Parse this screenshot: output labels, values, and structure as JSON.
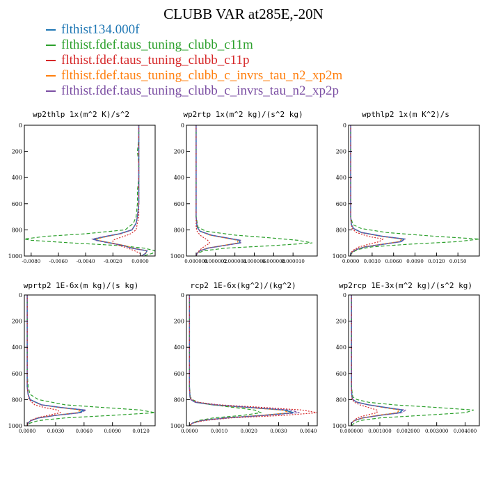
{
  "title": "CLUBB VAR at285E,-20N",
  "legend": [
    {
      "label": "flthist134.000f",
      "color": "#1f77b4",
      "dash": "solid"
    },
    {
      "label": "flthist.fdef.taus_tuning_clubb_c11m",
      "color": "#2ca02c",
      "dash": "dashed"
    },
    {
      "label": "flthist.fdef.taus_tuning_clubb_c11p",
      "color": "#d62728",
      "dash": "dashed"
    },
    {
      "label": "flthist.fdef.taus_tuning_clubb_c_invrs_tau_n2_xp2m",
      "color": "#ff7f0e",
      "dash": "dashed"
    },
    {
      "label": "flthist.fdef.taus_tuning_clubb_c_invrs_tau_n2_xp2p",
      "color": "#7b4ea3",
      "dash": "dashed"
    }
  ],
  "colors": {
    "series": [
      "#1f77b4",
      "#2ca02c",
      "#d62728",
      "#ff7f0e",
      "#7b4ea3"
    ]
  },
  "chart_data": [
    {
      "type": "line",
      "title": "wp2thlp  1x(m^2 K)/s^2",
      "xlim": [
        -0.0085,
        0.0011
      ],
      "ylim": [
        1000,
        0
      ],
      "xticks": [
        -0.008,
        -0.006,
        -0.004,
        -0.002,
        0.0
      ],
      "xtick_labels": [
        "-0.0080",
        "-0.0060",
        "-0.0040",
        "-0.0020",
        "0.0000"
      ],
      "yticks": [
        0,
        200,
        400,
        600,
        800,
        1000
      ],
      "ytick_labels": [
        "0",
        "200",
        "400",
        "600",
        "800",
        "1000"
      ],
      "y": [
        0,
        100,
        200,
        300,
        400,
        500,
        600,
        700,
        750,
        800,
        830,
        850,
        870,
        880,
        900,
        920,
        940,
        960,
        980,
        1000
      ],
      "series": [
        {
          "values": [
            -0.0001,
            -0.0001,
            -0.0001,
            -0.0001,
            -0.0001,
            -0.0001,
            -0.0001,
            -0.0002,
            -0.0003,
            -0.0006,
            -0.0015,
            -0.0025,
            -0.0034,
            -0.0032,
            -0.0022,
            -0.0012,
            -0.0006,
            0.0005,
            0.0004,
            0.0001
          ]
        },
        {
          "values": [
            -0.0001,
            -0.0001,
            -0.0002,
            -0.0001,
            -0.0001,
            -0.0002,
            -0.0002,
            -0.0003,
            -0.0005,
            -0.0011,
            -0.004,
            -0.007,
            -0.0085,
            -0.008,
            -0.005,
            -0.0015,
            0.0003,
            0.0011,
            0.0009,
            0.0002
          ]
        },
        {
          "values": [
            -0.0001,
            -0.0001,
            -0.0001,
            -0.0001,
            -0.0001,
            -0.0001,
            -0.0001,
            -0.0001,
            -0.0002,
            -0.0003,
            -0.0007,
            -0.0012,
            -0.0018,
            -0.002,
            -0.002,
            -0.0015,
            -0.0009,
            -0.0004,
            0.0,
            0.0
          ]
        },
        {
          "values": [
            -0.0001,
            -0.0001,
            -0.0001,
            -0.0001,
            -0.0001,
            -0.0001,
            -0.0001,
            -0.0002,
            -0.0003,
            -0.0006,
            -0.0014,
            -0.0024,
            -0.0032,
            -0.0031,
            -0.0021,
            -0.0011,
            -0.0005,
            0.0005,
            0.0004,
            0.0001
          ]
        },
        {
          "values": [
            -0.0001,
            -0.0001,
            -0.0001,
            -0.0001,
            -0.0001,
            -0.0001,
            -0.0001,
            -0.0002,
            -0.0003,
            -0.0006,
            -0.0015,
            -0.0026,
            -0.0035,
            -0.0033,
            -0.0023,
            -0.0012,
            -0.0006,
            0.0005,
            0.0004,
            0.0001
          ]
        }
      ]
    },
    {
      "type": "line",
      "title": "wp2rtp  1x(m^2 kg)/(s^2 kg)",
      "xlim": [
        -1e-06,
        1.25e-05
      ],
      "ylim": [
        1000,
        0
      ],
      "xticks": [
        0.0,
        2e-06,
        4e-06,
        6e-06,
        8e-06,
        1e-05
      ],
      "xtick_labels": [
        "0.000000",
        "0.000002",
        "0.000004",
        "0.000006",
        "0.000008",
        "0.000010"
      ],
      "yticks": [
        0,
        200,
        400,
        600,
        800,
        1000
      ],
      "ytick_labels": [
        "0",
        "200",
        "400",
        "600",
        "800",
        "1000"
      ],
      "y": [
        0,
        200,
        400,
        600,
        700,
        780,
        810,
        840,
        860,
        880,
        900,
        920,
        940,
        960,
        980,
        1000
      ],
      "series": [
        {
          "values": [
            0.0,
            0.0,
            0.0,
            0.0,
            0.0,
            1e-07,
            4e-07,
            1.5e-06,
            3e-06,
            4.5e-06,
            4.5e-06,
            2.8e-06,
            1.2e-06,
            4e-07,
            1e-07,
            0.0
          ]
        },
        {
          "values": [
            0.0,
            0.0,
            0.0,
            0.0,
            0.0,
            2e-07,
            1e-06,
            4e-06,
            7.5e-06,
            1.05e-05,
            1.2e-05,
            8e-06,
            3e-06,
            8e-07,
            1e-07,
            0.0
          ]
        },
        {
          "values": [
            0.0,
            0.0,
            0.0,
            0.0,
            0.0,
            0.0,
            1e-07,
            4e-07,
            8e-07,
            1.2e-06,
            1.4e-06,
            1e-06,
            6e-07,
            3e-07,
            1e-07,
            0.0
          ]
        },
        {
          "values": [
            0.0,
            0.0,
            0.0,
            0.0,
            0.0,
            1e-07,
            4e-07,
            1.4e-06,
            2.8e-06,
            4.3e-06,
            4.3e-06,
            2.7e-06,
            1.1e-06,
            4e-07,
            1e-07,
            0.0
          ]
        },
        {
          "values": [
            0.0,
            0.0,
            0.0,
            0.0,
            0.0,
            1e-07,
            4e-07,
            1.6e-06,
            3.1e-06,
            4.6e-06,
            4.6e-06,
            2.9e-06,
            1.2e-06,
            4e-07,
            1e-07,
            0.0
          ]
        }
      ]
    },
    {
      "type": "line",
      "title": "wpthlp2  1x(m K^2)/s",
      "xlim": [
        -0.0003,
        0.018
      ],
      "ylim": [
        1000,
        0
      ],
      "xticks": [
        0.0,
        0.003,
        0.006,
        0.009,
        0.012,
        0.015
      ],
      "xtick_labels": [
        "0.0000",
        "0.0030",
        "0.0060",
        "0.0090",
        "0.0120",
        "0.0150"
      ],
      "yticks": [
        0,
        200,
        400,
        600,
        800,
        1000
      ],
      "ytick_labels": [
        "0",
        "200",
        "400",
        "600",
        "800",
        "1000"
      ],
      "y": [
        0,
        200,
        400,
        600,
        700,
        760,
        790,
        820,
        850,
        870,
        890,
        910,
        930,
        950,
        970,
        990,
        1000
      ],
      "series": [
        {
          "values": [
            0.0,
            0.0,
            0.0,
            0.0,
            0.0,
            0.0001,
            0.0004,
            0.0015,
            0.0045,
            0.0075,
            0.007,
            0.0045,
            0.002,
            0.0008,
            0.0002,
            0.0,
            0.0
          ]
        },
        {
          "values": [
            0.0,
            0.0,
            0.0,
            0.0,
            0.0,
            0.0003,
            0.0015,
            0.005,
            0.012,
            0.018,
            0.015,
            0.008,
            0.003,
            0.001,
            0.0003,
            0.0,
            0.0
          ]
        },
        {
          "values": [
            0.0,
            0.0,
            0.0,
            0.0,
            0.0,
            0.0001,
            0.0002,
            0.0008,
            0.0025,
            0.0045,
            0.004,
            0.0025,
            0.0012,
            0.0005,
            0.0001,
            0.0,
            0.0
          ]
        },
        {
          "values": [
            0.0,
            0.0,
            0.0,
            0.0,
            0.0,
            0.0001,
            0.0004,
            0.0014,
            0.0043,
            0.0072,
            0.0067,
            0.0043,
            0.0019,
            0.0008,
            0.0002,
            0.0,
            0.0
          ]
        },
        {
          "values": [
            0.0,
            0.0,
            0.0,
            0.0,
            0.0,
            0.0001,
            0.0004,
            0.0015,
            0.0046,
            0.0076,
            0.0071,
            0.0046,
            0.002,
            0.0008,
            0.0002,
            0.0,
            0.0
          ]
        }
      ]
    },
    {
      "type": "line",
      "title": "wprtp2  1E-6x(m kg)/(s kg)",
      "xlim": [
        -0.0003,
        0.0135
      ],
      "ylim": [
        1000,
        0
      ],
      "xticks": [
        0.0,
        0.003,
        0.006,
        0.009,
        0.012
      ],
      "xtick_labels": [
        "0.0000",
        "0.0030",
        "0.0060",
        "0.0090",
        "0.0120"
      ],
      "yticks": [
        0,
        200,
        400,
        600,
        800,
        1000
      ],
      "ytick_labels": [
        "0",
        "200",
        "400",
        "600",
        "800",
        "1000"
      ],
      "y": [
        0,
        200,
        400,
        600,
        700,
        760,
        800,
        840,
        860,
        880,
        900,
        920,
        940,
        960,
        980,
        1000
      ],
      "series": [
        {
          "values": [
            0.0,
            0.0,
            0.0,
            0.0,
            0.0,
            0.0001,
            0.0003,
            0.0015,
            0.0035,
            0.006,
            0.0055,
            0.003,
            0.0012,
            0.0004,
            0.0001,
            0.0
          ]
        },
        {
          "values": [
            0.0,
            0.0,
            0.0,
            0.0,
            0.0001,
            0.0003,
            0.0012,
            0.004,
            0.008,
            0.012,
            0.0135,
            0.009,
            0.004,
            0.0012,
            0.0003,
            0.0
          ]
        },
        {
          "values": [
            0.0,
            0.0,
            0.0,
            0.0,
            0.0,
            0.0001,
            0.0002,
            0.0008,
            0.0018,
            0.0032,
            0.0035,
            0.0022,
            0.001,
            0.0003,
            0.0001,
            0.0
          ]
        },
        {
          "values": [
            0.0,
            0.0,
            0.0,
            0.0,
            0.0,
            0.0001,
            0.0003,
            0.0014,
            0.0033,
            0.0057,
            0.0052,
            0.0028,
            0.0011,
            0.0004,
            0.0001,
            0.0
          ]
        },
        {
          "values": [
            0.0,
            0.0,
            0.0,
            0.0,
            0.0,
            0.0001,
            0.0003,
            0.0015,
            0.0036,
            0.0062,
            0.0057,
            0.0031,
            0.0012,
            0.0004,
            0.0001,
            0.0
          ]
        }
      ]
    },
    {
      "type": "line",
      "title": "rcp2  1E-6x(kg^2)/(kg^2)",
      "xlim": [
        -0.0001,
        0.0043
      ],
      "ylim": [
        1000,
        0
      ],
      "xticks": [
        0.0,
        0.001,
        0.002,
        0.003,
        0.004
      ],
      "xtick_labels": [
        "0.0000",
        "0.0010",
        "0.0020",
        "0.0030",
        "0.0040"
      ],
      "yticks": [
        0,
        200,
        400,
        600,
        800,
        1000
      ],
      "ytick_labels": [
        "0",
        "200",
        "400",
        "600",
        "800",
        "1000"
      ],
      "y": [
        0,
        200,
        400,
        600,
        700,
        780,
        800,
        820,
        840,
        860,
        880,
        900,
        920,
        940,
        960,
        980,
        1000
      ],
      "series": [
        {
          "values": [
            0.0,
            0.0,
            0.0,
            0.0,
            0.0,
            2e-05,
            5e-05,
            0.0002,
            0.0008,
            0.002,
            0.0032,
            0.0035,
            0.0025,
            0.0012,
            0.0004,
            0.0001,
            0.0
          ]
        },
        {
          "values": [
            0.0,
            0.0,
            0.0,
            0.0,
            0.0,
            3e-05,
            0.0001,
            0.0003,
            0.0008,
            0.0015,
            0.0022,
            0.0024,
            0.0018,
            0.0008,
            0.0003,
            0.0001,
            0.0
          ]
        },
        {
          "values": [
            0.0,
            0.0,
            0.0,
            0.0,
            0.0,
            2e-05,
            6e-05,
            0.0003,
            0.001,
            0.0025,
            0.0038,
            0.0043,
            0.0032,
            0.0014,
            0.0005,
            0.0001,
            0.0
          ]
        },
        {
          "values": [
            0.0,
            0.0,
            0.0,
            0.0,
            0.0,
            2e-05,
            5e-05,
            0.0002,
            0.0008,
            0.0019,
            0.0031,
            0.0034,
            0.0024,
            0.0012,
            0.0004,
            0.0001,
            0.0
          ]
        },
        {
          "values": [
            0.0,
            0.0,
            0.0,
            0.0,
            0.0,
            2e-05,
            5e-05,
            0.0002,
            0.0009,
            0.0021,
            0.0034,
            0.0037,
            0.0026,
            0.0013,
            0.0004,
            0.0001,
            0.0
          ]
        }
      ]
    },
    {
      "type": "line",
      "title": "wp2rcp  1E-3x(m^2 kg)/(s^2 kg)",
      "xlim": [
        -0.0001,
        0.0045
      ],
      "ylim": [
        1000,
        0
      ],
      "xticks": [
        0.0,
        0.001,
        0.002,
        0.003,
        0.004
      ],
      "xtick_labels": [
        "0.000000",
        "0.001000",
        "0.002000",
        "0.003000",
        "0.004000"
      ],
      "yticks": [
        0,
        200,
        400,
        600,
        800,
        1000
      ],
      "ytick_labels": [
        "0",
        "200",
        "400",
        "600",
        "800",
        "1000"
      ],
      "y": [
        0,
        200,
        400,
        600,
        700,
        780,
        800,
        820,
        840,
        860,
        880,
        900,
        920,
        940,
        960,
        980,
        1000
      ],
      "series": [
        {
          "values": [
            0.0,
            0.0,
            0.0,
            0.0,
            0.0,
            2e-05,
            5e-05,
            0.0002,
            0.0006,
            0.0012,
            0.0018,
            0.0017,
            0.001,
            0.0004,
            0.0001,
            0.0,
            0.0
          ]
        },
        {
          "values": [
            0.0,
            0.0,
            0.0,
            0.0,
            0.0,
            5e-05,
            0.0002,
            0.0006,
            0.0015,
            0.003,
            0.0043,
            0.004,
            0.0025,
            0.001,
            0.0003,
            0.0001,
            0.0
          ]
        },
        {
          "values": [
            0.0,
            0.0,
            0.0,
            0.0,
            0.0,
            1e-05,
            3e-05,
            0.0001,
            0.0003,
            0.0006,
            0.0009,
            0.0009,
            0.0005,
            0.0002,
            0.0001,
            0.0,
            0.0
          ]
        },
        {
          "values": [
            0.0,
            0.0,
            0.0,
            0.0,
            0.0,
            2e-05,
            5e-05,
            0.0002,
            0.0006,
            0.0011,
            0.0017,
            0.0016,
            0.0009,
            0.0004,
            0.0001,
            0.0,
            0.0
          ]
        },
        {
          "values": [
            0.0,
            0.0,
            0.0,
            0.0,
            0.0,
            2e-05,
            5e-05,
            0.0002,
            0.0006,
            0.0012,
            0.0019,
            0.0018,
            0.001,
            0.0004,
            0.0001,
            0.0,
            0.0
          ]
        }
      ]
    }
  ]
}
